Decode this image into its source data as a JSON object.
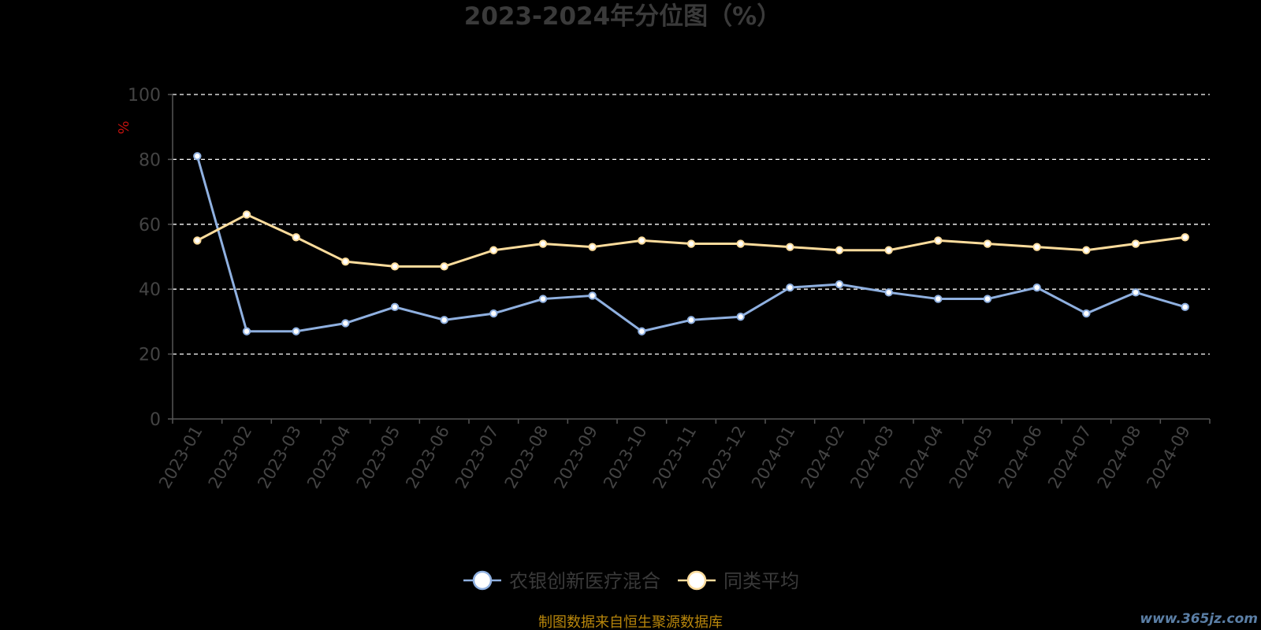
{
  "chart_data": {
    "type": "line",
    "title": "2023-2024年分位图（%）",
    "ylabel": "%",
    "ylim": [
      0,
      100
    ],
    "yticks": [
      0,
      20,
      40,
      60,
      80,
      100
    ],
    "grid": true,
    "legend_position": "bottom-center",
    "categories": [
      "2023-01",
      "2023-02",
      "2023-03",
      "2023-04",
      "2023-05",
      "2023-06",
      "2023-07",
      "2023-08",
      "2023-09",
      "2023-10",
      "2023-11",
      "2023-12",
      "2024-01",
      "2024-02",
      "2024-03",
      "2024-04",
      "2024-05",
      "2024-06",
      "2024-07",
      "2024-08",
      "2024-09"
    ],
    "series": [
      {
        "name": "农银创新医疗混合",
        "color": "#8fb0e0",
        "values": [
          81,
          27,
          27,
          29.5,
          34.5,
          30.5,
          32.5,
          37,
          38,
          27,
          30.5,
          31.5,
          40.5,
          41.5,
          39,
          37,
          37,
          40.5,
          32.5,
          39,
          34.5
        ]
      },
      {
        "name": "同类平均",
        "color": "#fcdc9c",
        "values": [
          55,
          63,
          56,
          48.5,
          47,
          47,
          52,
          54,
          53,
          55,
          54,
          54,
          53,
          52,
          52,
          55,
          54,
          53,
          52,
          54,
          56
        ]
      }
    ]
  },
  "footer": {
    "source_text": "制图数据来自恒生聚源数据库",
    "watermark": "www.365jz.com"
  }
}
